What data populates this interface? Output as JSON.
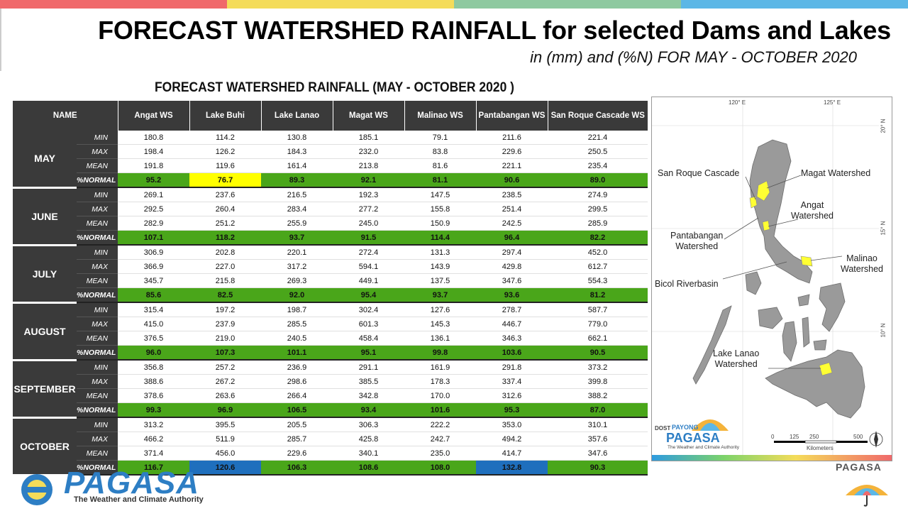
{
  "header": {
    "title": "FORECAST WATERSHED RAINFALL  for selected Dams and Lakes",
    "subtitle": "in (mm) and (%N) FOR MAY - OCTOBER 2020",
    "bar_colors": [
      "#f0696b",
      "#f4dc5a",
      "#8ec9a0",
      "#5cb7e6"
    ]
  },
  "table": {
    "title": "FORECAST WATERSHED RAINFALL (MAY - OCTOBER 2020 )",
    "name_header": "NAME",
    "columns": [
      "Angat WS",
      "Lake Buhi",
      "Lake Lanao",
      "Magat WS",
      "Malinao WS",
      "Pantabangan WS",
      "San Roque Cascade WS"
    ],
    "stat_labels": [
      "MIN",
      "MAX",
      "MEAN",
      "%NORMAL"
    ],
    "colors": {
      "green": "#4aa61a",
      "yellow": "#ffff00",
      "blue": "#1f6fbd"
    },
    "months": [
      {
        "name": "MAY",
        "rows": [
          [
            "180.8",
            "114.2",
            "130.8",
            "185.1",
            "79.1",
            "211.6",
            "221.4"
          ],
          [
            "198.4",
            "126.2",
            "184.3",
            "232.0",
            "83.8",
            "229.6",
            "250.5"
          ],
          [
            "191.8",
            "119.6",
            "161.4",
            "213.8",
            "81.6",
            "221.1",
            "235.4"
          ],
          [
            "95.2",
            "76.7",
            "89.3",
            "92.1",
            "81.1",
            "90.6",
            "89.0"
          ]
        ],
        "normal_colors": [
          "green",
          "yellow",
          "green",
          "green",
          "green",
          "green",
          "green"
        ]
      },
      {
        "name": "JUNE",
        "rows": [
          [
            "269.1",
            "237.6",
            "216.5",
            "192.3",
            "147.5",
            "238.5",
            "274.9"
          ],
          [
            "292.5",
            "260.4",
            "283.4",
            "277.2",
            "155.8",
            "251.4",
            "299.5"
          ],
          [
            "282.9",
            "251.2",
            "255.9",
            "245.0",
            "150.9",
            "242.5",
            "285.9"
          ],
          [
            "107.1",
            "118.2",
            "93.7",
            "91.5",
            "114.4",
            "96.4",
            "82.2"
          ]
        ],
        "normal_colors": [
          "green",
          "green",
          "green",
          "green",
          "green",
          "green",
          "green"
        ]
      },
      {
        "name": "JULY",
        "rows": [
          [
            "306.9",
            "202.8",
            "220.1",
            "272.4",
            "131.3",
            "297.4",
            "452.0"
          ],
          [
            "366.9",
            "227.0",
            "317.2",
            "594.1",
            "143.9",
            "429.8",
            "612.7"
          ],
          [
            "345.7",
            "215.8",
            "269.3",
            "449.1",
            "137.5",
            "347.6",
            "554.3"
          ],
          [
            "85.6",
            "82.5",
            "92.0",
            "95.4",
            "93.7",
            "93.6",
            "81.2"
          ]
        ],
        "normal_colors": [
          "green",
          "green",
          "green",
          "green",
          "green",
          "green",
          "green"
        ]
      },
      {
        "name": "AUGUST",
        "rows": [
          [
            "315.4",
            "197.2",
            "198.7",
            "302.4",
            "127.6",
            "278.7",
            "587.7"
          ],
          [
            "415.0",
            "237.9",
            "285.5",
            "601.3",
            "145.3",
            "446.7",
            "779.0"
          ],
          [
            "376.5",
            "219.0",
            "240.5",
            "458.4",
            "136.1",
            "346.3",
            "662.1"
          ],
          [
            "96.0",
            "107.3",
            "101.1",
            "95.1",
            "99.8",
            "103.6",
            "90.5"
          ]
        ],
        "normal_colors": [
          "green",
          "green",
          "green",
          "green",
          "green",
          "green",
          "green"
        ]
      },
      {
        "name": "SEPTEMBER",
        "rows": [
          [
            "356.8",
            "257.2",
            "236.9",
            "291.1",
            "161.9",
            "291.8",
            "373.2"
          ],
          [
            "388.6",
            "267.2",
            "298.6",
            "385.5",
            "178.3",
            "337.4",
            "399.8"
          ],
          [
            "378.6",
            "263.6",
            "266.4",
            "342.8",
            "170.0",
            "312.6",
            "388.2"
          ],
          [
            "99.3",
            "96.9",
            "106.5",
            "93.4",
            "101.6",
            "95.3",
            "87.0"
          ]
        ],
        "normal_colors": [
          "green",
          "green",
          "green",
          "green",
          "green",
          "green",
          "green"
        ]
      },
      {
        "name": "OCTOBER",
        "rows": [
          [
            "313.2",
            "395.5",
            "205.5",
            "306.3",
            "222.2",
            "353.0",
            "310.1"
          ],
          [
            "466.2",
            "511.9",
            "285.7",
            "425.8",
            "242.7",
            "494.2",
            "357.6"
          ],
          [
            "371.4",
            "456.0",
            "229.6",
            "340.1",
            "235.0",
            "414.7",
            "347.6"
          ],
          [
            "116.7",
            "120.6",
            "106.3",
            "108.6",
            "108.0",
            "132.8",
            "90.3"
          ]
        ],
        "normal_colors": [
          "green",
          "blue",
          "green",
          "green",
          "green",
          "blue",
          "green"
        ]
      }
    ]
  },
  "map": {
    "coords_top": [
      "120° E",
      "125° E"
    ],
    "coords_right": [
      "20° N",
      "15° N",
      "10° N"
    ],
    "labels": {
      "san_roque": "San Roque Cascade",
      "magat": "Magat Watershed",
      "angat": "Angat\nWatershed",
      "pantabangan": "Pantabangan\nWatershed",
      "malinao": "Malinao\nWatershed",
      "bicol": "Bicol Riverbasin",
      "lanao": "Lake Lanao\nWatershed"
    },
    "scale_ticks": [
      "0",
      "125",
      "250",
      "500"
    ],
    "scale_unit": "Kilometers",
    "logo_dost": "DOST",
    "logo_payong": "PAYONG",
    "logo_pagasa": "PAGASA",
    "logo_tagline": "The Weather and Climate Authority"
  },
  "footer": {
    "logo_text": "PAGASA",
    "tagline": "The Weather and Climate Authority",
    "corner_text": "PAGASA"
  }
}
